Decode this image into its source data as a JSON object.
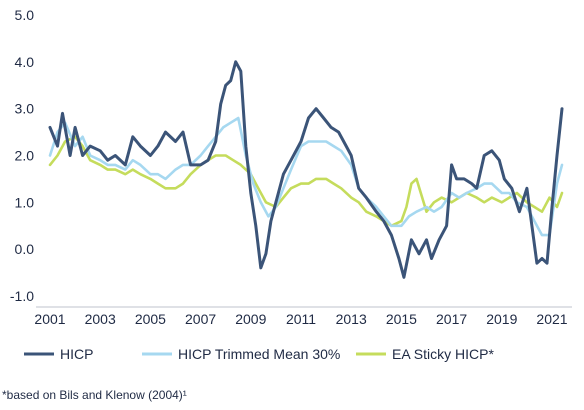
{
  "footnote": "*based on Bils and Klenow (2004)¹",
  "chart_data": {
    "type": "line",
    "title": "",
    "xlabel": "",
    "ylabel": "",
    "xlim": [
      2001,
      2021.6
    ],
    "ylim": [
      -1.0,
      5.0
    ],
    "x_ticks": [
      "2001",
      "2003",
      "2005",
      "2007",
      "2009",
      "2011",
      "2013",
      "2015",
      "2017",
      "2019",
      "2021"
    ],
    "y_ticks": [
      "5.0",
      "4.0",
      "3.0",
      "2.0",
      "1.0",
      "0.0",
      "-1.0"
    ],
    "grid": false,
    "legend_position": "bottom",
    "series": [
      {
        "name": "HICP",
        "color": "#3b5478",
        "x": [
          2001.0,
          2001.3,
          2001.5,
          2001.8,
          2002.0,
          2002.3,
          2002.6,
          2003.0,
          2003.3,
          2003.6,
          2004.0,
          2004.3,
          2004.6,
          2005.0,
          2005.3,
          2005.6,
          2006.0,
          2006.3,
          2006.6,
          2007.0,
          2007.3,
          2007.6,
          2007.8,
          2008.0,
          2008.2,
          2008.4,
          2008.6,
          2008.8,
          2009.0,
          2009.2,
          2009.4,
          2009.6,
          2009.8,
          2010.0,
          2010.3,
          2010.6,
          2011.0,
          2011.3,
          2011.6,
          2011.9,
          2012.2,
          2012.5,
          2012.8,
          2013.0,
          2013.3,
          2013.6,
          2014.0,
          2014.3,
          2014.6,
          2014.9,
          2015.1,
          2015.4,
          2015.7,
          2016.0,
          2016.2,
          2016.5,
          2016.8,
          2017.0,
          2017.2,
          2017.5,
          2017.8,
          2018.0,
          2018.3,
          2018.6,
          2018.9,
          2019.1,
          2019.4,
          2019.7,
          2020.0,
          2020.2,
          2020.4,
          2020.6,
          2020.8,
          2021.0,
          2021.2,
          2021.4
        ],
        "y": [
          2.6,
          2.2,
          2.9,
          2.0,
          2.6,
          2.0,
          2.2,
          2.1,
          1.9,
          2.0,
          1.8,
          2.4,
          2.2,
          2.0,
          2.2,
          2.5,
          2.3,
          2.5,
          1.8,
          1.8,
          1.9,
          2.3,
          3.1,
          3.5,
          3.6,
          4.0,
          3.8,
          2.2,
          1.2,
          0.5,
          -0.4,
          -0.1,
          0.6,
          1.0,
          1.6,
          1.9,
          2.3,
          2.8,
          3.0,
          2.8,
          2.6,
          2.5,
          2.2,
          2.0,
          1.3,
          1.1,
          0.8,
          0.6,
          0.3,
          -0.2,
          -0.6,
          0.2,
          -0.1,
          0.2,
          -0.2,
          0.2,
          0.5,
          1.8,
          1.5,
          1.5,
          1.4,
          1.3,
          2.0,
          2.1,
          1.9,
          1.5,
          1.3,
          0.8,
          1.3,
          0.5,
          -0.3,
          -0.2,
          -0.3,
          0.9,
          2.0,
          3.0
        ]
      },
      {
        "name": "HICP Trimmed Mean 30%",
        "color": "#a6d8f0",
        "x": [
          2001.0,
          2001.3,
          2001.6,
          2002.0,
          2002.3,
          2002.6,
          2003.0,
          2003.3,
          2003.6,
          2004.0,
          2004.3,
          2004.6,
          2005.0,
          2005.3,
          2005.6,
          2006.0,
          2006.3,
          2006.6,
          2007.0,
          2007.3,
          2007.6,
          2007.9,
          2008.2,
          2008.5,
          2008.8,
          2009.1,
          2009.4,
          2009.7,
          2010.0,
          2010.3,
          2010.6,
          2011.0,
          2011.3,
          2011.6,
          2012.0,
          2012.3,
          2012.6,
          2013.0,
          2013.3,
          2013.6,
          2014.0,
          2014.3,
          2014.6,
          2015.0,
          2015.3,
          2015.6,
          2016.0,
          2016.3,
          2016.6,
          2017.0,
          2017.3,
          2017.6,
          2018.0,
          2018.3,
          2018.6,
          2019.0,
          2019.3,
          2019.6,
          2020.0,
          2020.3,
          2020.6,
          2020.9,
          2021.2,
          2021.4
        ],
        "y": [
          2.0,
          2.5,
          2.7,
          2.2,
          2.4,
          2.0,
          1.9,
          1.8,
          1.8,
          1.7,
          1.9,
          1.8,
          1.6,
          1.6,
          1.5,
          1.7,
          1.8,
          1.8,
          2.0,
          2.2,
          2.4,
          2.6,
          2.7,
          2.8,
          2.0,
          1.4,
          1.0,
          0.7,
          0.9,
          1.3,
          1.7,
          2.2,
          2.3,
          2.3,
          2.3,
          2.2,
          2.1,
          1.8,
          1.3,
          1.1,
          0.9,
          0.7,
          0.5,
          0.5,
          0.7,
          0.8,
          0.9,
          0.8,
          0.9,
          1.2,
          1.1,
          1.2,
          1.3,
          1.4,
          1.4,
          1.2,
          1.2,
          1.0,
          0.9,
          0.6,
          0.3,
          0.3,
          1.4,
          1.8
        ]
      },
      {
        "name": "EA Sticky HICP*",
        "color": "#c5dc5c",
        "x": [
          2001.0,
          2001.3,
          2001.6,
          2002.0,
          2002.3,
          2002.6,
          2003.0,
          2003.3,
          2003.6,
          2004.0,
          2004.3,
          2004.6,
          2005.0,
          2005.3,
          2005.6,
          2006.0,
          2006.3,
          2006.6,
          2007.0,
          2007.3,
          2007.6,
          2008.0,
          2008.3,
          2008.6,
          2009.0,
          2009.3,
          2009.6,
          2010.0,
          2010.3,
          2010.6,
          2011.0,
          2011.3,
          2011.6,
          2012.0,
          2012.3,
          2012.6,
          2013.0,
          2013.3,
          2013.6,
          2014.0,
          2014.3,
          2014.6,
          2015.0,
          2015.2,
          2015.4,
          2015.6,
          2016.0,
          2016.3,
          2016.6,
          2017.0,
          2017.3,
          2017.6,
          2018.0,
          2018.3,
          2018.6,
          2019.0,
          2019.3,
          2019.6,
          2020.0,
          2020.3,
          2020.6,
          2020.9,
          2021.2,
          2021.4
        ],
        "y": [
          1.8,
          2.0,
          2.3,
          2.4,
          2.2,
          1.9,
          1.8,
          1.7,
          1.7,
          1.6,
          1.7,
          1.6,
          1.5,
          1.4,
          1.3,
          1.3,
          1.4,
          1.6,
          1.8,
          1.9,
          2.0,
          2.0,
          1.9,
          1.8,
          1.6,
          1.3,
          1.0,
          0.9,
          1.1,
          1.3,
          1.4,
          1.4,
          1.5,
          1.5,
          1.4,
          1.3,
          1.1,
          1.0,
          0.8,
          0.7,
          0.6,
          0.5,
          0.6,
          0.9,
          1.4,
          1.5,
          0.8,
          1.0,
          1.1,
          1.0,
          1.1,
          1.2,
          1.1,
          1.0,
          1.1,
          1.0,
          1.1,
          1.2,
          1.0,
          0.9,
          0.8,
          1.1,
          0.9,
          1.2
        ]
      }
    ]
  }
}
